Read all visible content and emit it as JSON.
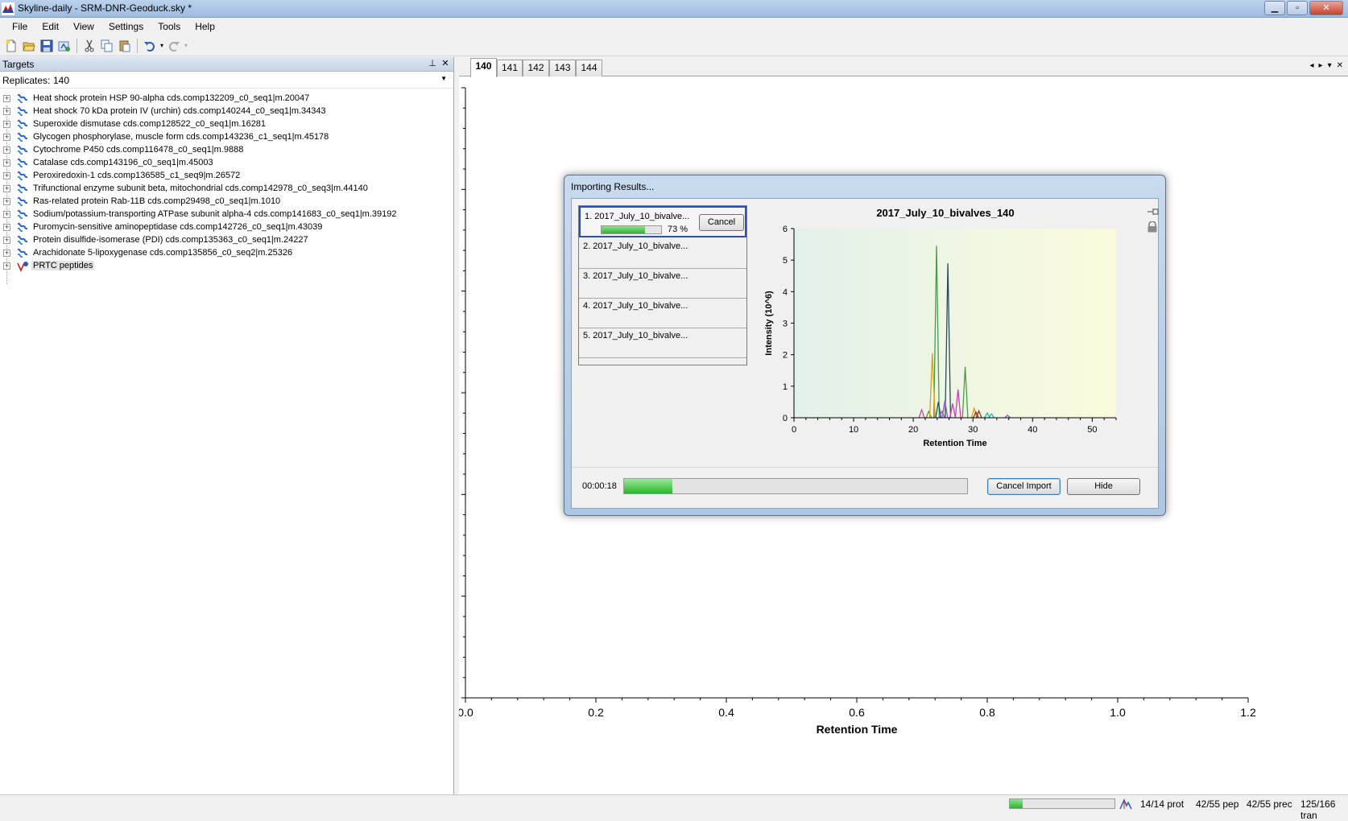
{
  "window": {
    "title": "Skyline-daily - SRM-DNR-Geoduck.sky *",
    "min_label": "▁",
    "max_label": "▫",
    "close_label": "✕"
  },
  "menu": [
    "File",
    "Edit",
    "View",
    "Settings",
    "Tools",
    "Help"
  ],
  "toolbar": {
    "icons": [
      "new-document-icon",
      "open-folder-icon",
      "save-icon",
      "import-icon",
      "cut-icon",
      "copy-icon",
      "paste-icon",
      "undo-icon",
      "redo-icon"
    ]
  },
  "targets": {
    "title": "Targets",
    "pin_label": "⊥",
    "close_label": "✕",
    "replicates_label": "Replicates:",
    "replicates_value": "140",
    "items": [
      {
        "label": "Heat shock protein HSP 90-alpha cds.comp132209_c0_seq1|m.20047"
      },
      {
        "label": "Heat shock 70 kDa protein IV (urchin) cds.comp140244_c0_seq1|m.34343"
      },
      {
        "label": "Superoxide dismutase cds.comp128522_c0_seq1|m.16281"
      },
      {
        "label": "Glycogen phosphorylase, muscle form cds.comp143236_c1_seq1|m.45178"
      },
      {
        "label": "Cytochrome P450 cds.comp116478_c0_seq1|m.9888"
      },
      {
        "label": "Catalase cds.comp143196_c0_seq1|m.45003"
      },
      {
        "label": "Peroxiredoxin-1 cds.comp136585_c1_seq9|m.26572"
      },
      {
        "label": "Trifunctional enzyme subunit beta, mitochondrial  cds.comp142978_c0_seq3|m.44140"
      },
      {
        "label": "Ras-related protein Rab-11B cds.comp29498_c0_seq1|m.1010"
      },
      {
        "label": "Sodium/potassium-transporting ATPase subunit alpha-4  cds.comp141683_c0_seq1|m.39192"
      },
      {
        "label": "Puromycin-sensitive aminopeptidase cds.comp142726_c0_seq1|m.43039"
      },
      {
        "label": "Protein disulfide-isomerase (PDI) cds.comp135363_c0_seq1|m.24227"
      },
      {
        "label": "Arachidonate 5-lipoxygenase cds.comp135856_c0_seq2|m.25326"
      },
      {
        "label": "PRTC peptides"
      }
    ]
  },
  "graph": {
    "tabs": [
      "140",
      "141",
      "142",
      "143",
      "144"
    ],
    "active_tab": "140",
    "tab_controls": [
      "◂",
      "▸",
      "▾",
      "✕"
    ]
  },
  "chart_data": [
    {
      "type": "line",
      "title": "",
      "xlabel": "Retention Time",
      "ylabel": "",
      "xlim": [
        0,
        1.2
      ],
      "ylim": [
        0,
        1.2
      ],
      "x_ticks": [
        "0.0",
        "0.2",
        "0.4",
        "0.6",
        "0.8",
        "1.0",
        "1.2"
      ],
      "y_ticks": [
        "0",
        "0.2",
        "0.4",
        "0.6",
        "0.8",
        "1",
        "1.2"
      ],
      "series": []
    },
    {
      "type": "line",
      "title": "2017_July_10_bivalves_140",
      "xlabel": "Retention Time",
      "ylabel": "Intensity (10^6)",
      "xlim": [
        0,
        54
      ],
      "ylim": [
        0,
        6
      ],
      "x_ticks": [
        "0",
        "10",
        "20",
        "30",
        "40",
        "50"
      ],
      "y_ticks": [
        "0",
        "1",
        "2",
        "3",
        "4",
        "5",
        "6"
      ],
      "series": [
        {
          "color": "#4a9a4a",
          "peaks": [
            [
              23.9,
              5.45
            ],
            [
              28.7,
              1.62
            ],
            [
              22.6,
              0.2
            ]
          ]
        },
        {
          "color": "#2c4a5a",
          "peaks": [
            [
              25.8,
              4.9
            ],
            [
              24.2,
              0.5
            ]
          ]
        },
        {
          "color": "#d4a020",
          "peaks": [
            [
              23.2,
              2.05
            ],
            [
              30.2,
              0.3
            ]
          ]
        },
        {
          "color": "#d040b0",
          "peaks": [
            [
              27.5,
              0.9
            ],
            [
              26.6,
              0.45
            ],
            [
              21.4,
              0.25
            ]
          ]
        },
        {
          "color": "#8a5cc0",
          "peaks": [
            [
              25.3,
              0.55
            ],
            [
              24.8,
              0.2
            ],
            [
              35.8,
              0.08
            ]
          ]
        },
        {
          "color": "#20b8b8",
          "peaks": [
            [
              32.4,
              0.15
            ],
            [
              33.1,
              0.12
            ]
          ]
        },
        {
          "color": "#8b3a2a",
          "peaks": [
            [
              31.0,
              0.22
            ],
            [
              30.5,
              0.18
            ]
          ]
        }
      ]
    }
  ],
  "dialog": {
    "title": "Importing Results...",
    "files": [
      {
        "name": "1. 2017_July_10_bivalve...",
        "progress_pct": 73,
        "pct_label": "73 %",
        "cancel_label": "Cancel"
      },
      {
        "name": "2. 2017_July_10_bivalve..."
      },
      {
        "name": "3. 2017_July_10_bivalve..."
      },
      {
        "name": "4. 2017_July_10_bivalve..."
      },
      {
        "name": "5. 2017_July_10_bivalve..."
      }
    ],
    "elapsed": "00:00:18",
    "overall_progress": 0.14,
    "cancel_import_label": "Cancel Import",
    "hide_label": "Hide"
  },
  "statusbar": {
    "progress": 0.12,
    "prot": "14/14 prot",
    "pep": "42/55 pep",
    "prec": "42/55 prec",
    "tran": "125/166 tran"
  }
}
